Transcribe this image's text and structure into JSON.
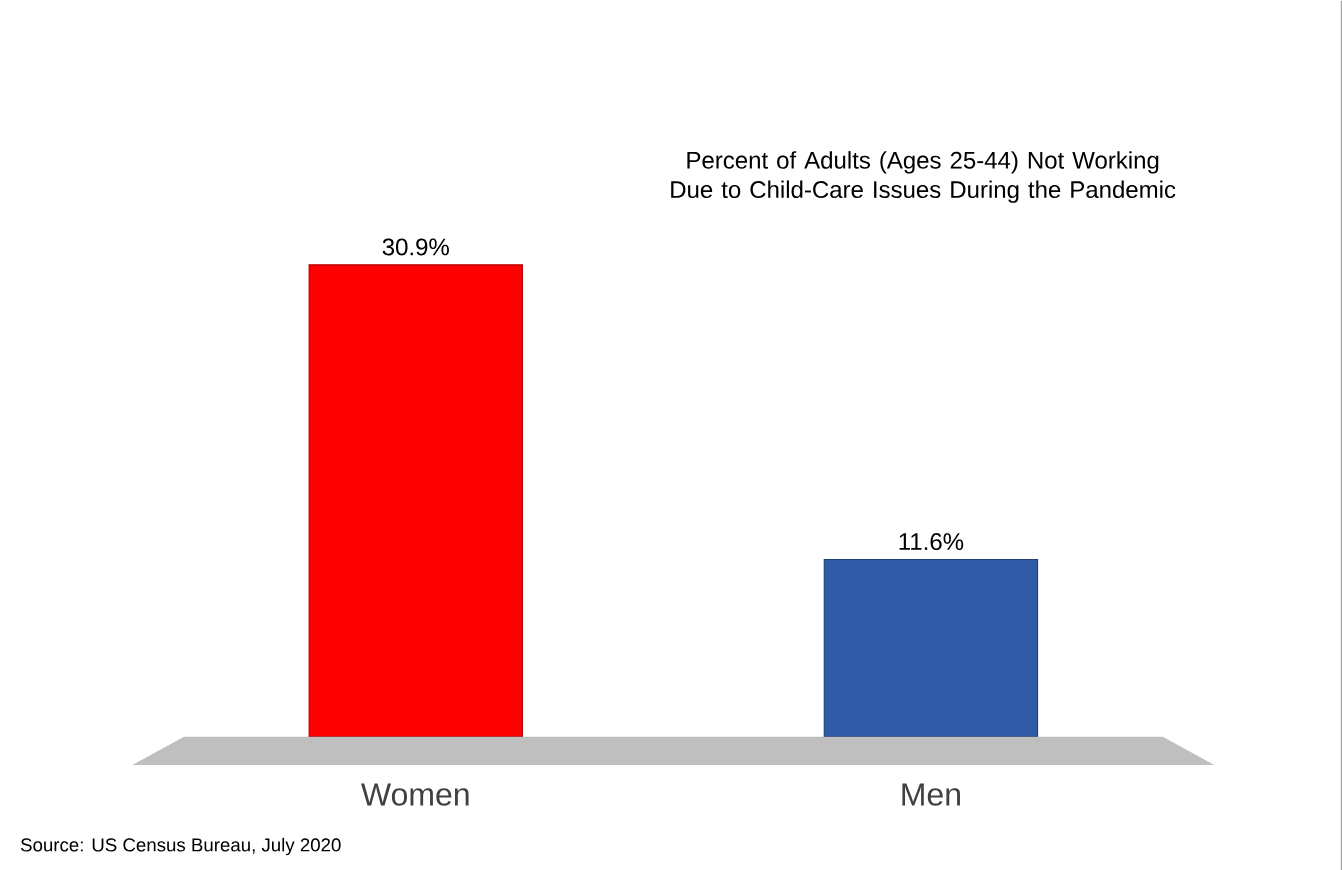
{
  "chart_data": {
    "type": "bar",
    "title": "Percent of Adults (Ages 25-44) Not Working Due to Child-Care Issues During the Pandemic",
    "categories": [
      "Women",
      "Men"
    ],
    "values": [
      30.9,
      11.6
    ],
    "colors": [
      "#ff0000",
      "#2f5aa6"
    ],
    "value_labels": [
      "30.9%",
      "11.6%"
    ],
    "annotations": [
      "Source: US Census Bureau, July 2020"
    ]
  }
}
